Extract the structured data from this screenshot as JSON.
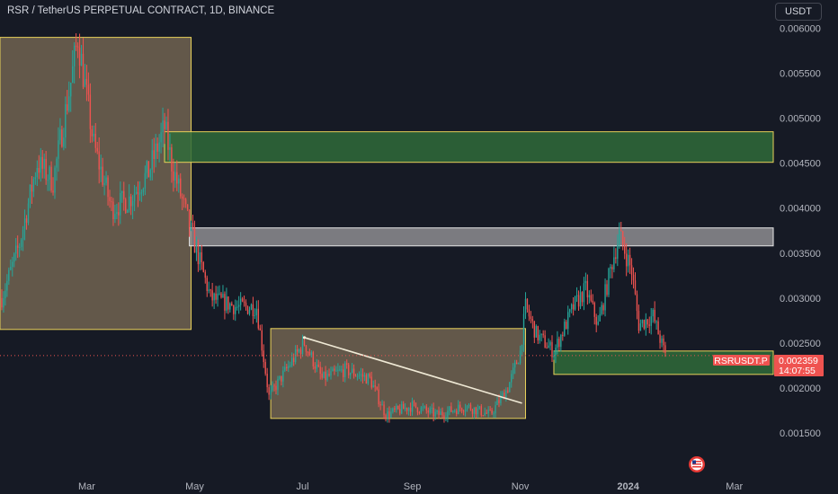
{
  "header": {
    "title": "RSR / TetherUS PERPETUAL CONTRACT, 1D, BINANCE",
    "currency": "USDT"
  },
  "price_label": {
    "symbol": "RSRUSDT.P",
    "price": "0.002359",
    "countdown": "14:07:55"
  },
  "colors": {
    "background": "#161a25",
    "up": "#26a69a",
    "down": "#ef5350",
    "zone_brown": "#7a6a55",
    "zone_green": "#2f6b3a",
    "zone_grey": "#8d8d90",
    "zone_border": "#e9d25a"
  },
  "chart_data": {
    "type": "candlestick",
    "title": "RSR / TetherUS PERPETUAL CONTRACT, 1D, BINANCE",
    "x_ticks": [
      "Mar",
      "May",
      "Jul",
      "Sep",
      "Nov",
      "2024",
      "Mar"
    ],
    "y_ticks": [
      "0.006000",
      "0.005500",
      "0.005000",
      "0.004500",
      "0.004000",
      "0.003500",
      "0.003000",
      "0.002500",
      "0.002000",
      "0.001500"
    ],
    "ylim": [
      0.00103,
      0.00613
    ],
    "x_range": [
      "2023-01-11",
      "2024-03-23"
    ],
    "last_price": 0.002359,
    "price_path": [
      [
        "2023-01-12",
        0.003
      ],
      [
        "2023-01-22",
        0.0036
      ],
      [
        "2023-02-01",
        0.0045
      ],
      [
        "2023-02-10",
        0.0043
      ],
      [
        "2023-02-20",
        0.0054
      ],
      [
        "2023-02-24",
        0.0059
      ],
      [
        "2023-03-05",
        0.0047
      ],
      [
        "2023-03-15",
        0.004
      ],
      [
        "2023-03-25",
        0.0041
      ],
      [
        "2023-04-05",
        0.0044
      ],
      [
        "2023-04-14",
        0.0049
      ],
      [
        "2023-04-18",
        0.0045
      ],
      [
        "2023-04-28",
        0.0038
      ],
      [
        "2023-05-10",
        0.003
      ],
      [
        "2023-05-25",
        0.0029
      ],
      [
        "2023-06-05",
        0.0029
      ],
      [
        "2023-06-12",
        0.0019
      ],
      [
        "2023-06-25",
        0.0023
      ],
      [
        "2023-07-02",
        0.0025
      ],
      [
        "2023-07-12",
        0.0021
      ],
      [
        "2023-07-25",
        0.0022
      ],
      [
        "2023-08-08",
        0.0021
      ],
      [
        "2023-08-17",
        0.0017
      ],
      [
        "2023-09-01",
        0.0018
      ],
      [
        "2023-09-15",
        0.0017
      ],
      [
        "2023-10-01",
        0.0018
      ],
      [
        "2023-10-15",
        0.0017
      ],
      [
        "2023-10-25",
        0.002
      ],
      [
        "2023-11-01",
        0.0024
      ],
      [
        "2023-11-04",
        0.0029
      ],
      [
        "2023-11-10",
        0.0026
      ],
      [
        "2023-11-20",
        0.0024
      ],
      [
        "2023-12-01",
        0.0029
      ],
      [
        "2023-12-08",
        0.0031
      ],
      [
        "2023-12-15",
        0.0027
      ],
      [
        "2023-12-23",
        0.0034
      ],
      [
        "2023-12-27",
        0.0037
      ],
      [
        "2024-01-03",
        0.0033
      ],
      [
        "2024-01-07",
        0.0027
      ],
      [
        "2024-01-15",
        0.0028
      ],
      [
        "2024-01-22",
        0.00236
      ]
    ],
    "zones": [
      {
        "from": "2023-01-11",
        "to": "2023-04-29",
        "low": 0.00265,
        "high": 0.0059,
        "fill": "brown"
      },
      {
        "from": "2023-04-14",
        "to": "2024-03-23",
        "low": 0.00451,
        "high": 0.00485,
        "fill": "green"
      },
      {
        "from": "2023-04-28",
        "to": "2024-03-23",
        "low": 0.00358,
        "high": 0.00378,
        "fill": "grey"
      },
      {
        "from": "2023-06-13",
        "to": "2023-11-04",
        "low": 0.00166,
        "high": 0.00266,
        "fill": "brown"
      },
      {
        "from": "2023-11-20",
        "to": "2024-03-23",
        "low": 0.00215,
        "high": 0.00241,
        "fill": "green"
      }
    ],
    "trendline": {
      "from": [
        "2023-07-02",
        0.00256
      ],
      "to": [
        "2023-11-02",
        0.00183
      ]
    },
    "grid": false
  }
}
